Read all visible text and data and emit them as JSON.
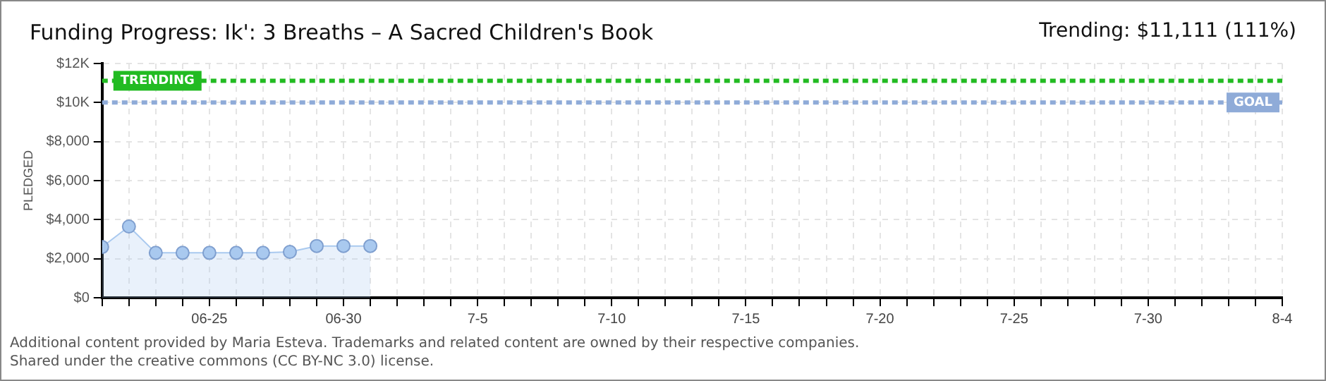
{
  "chart_data": {
    "type": "area",
    "title": "Funding Progress: Ik': 3 Breaths – A Sacred Children's Book",
    "subtitle": "Trending:  $11,111 (111%)",
    "ylabel": "PLEDGED",
    "x": [
      "--06-21",
      "--06-22",
      "--06-23",
      "--06-24",
      "--06-25",
      "--06-26",
      "--06-27",
      "--06-28",
      "--06-29",
      "--06-30",
      "--07-01"
    ],
    "series": [
      {
        "color": "#a9c9ef",
        "values": [
          2600,
          3650,
          2300,
          2300,
          2300,
          2300,
          2300,
          2350,
          2650,
          2650,
          2650
        ]
      }
    ],
    "ylim": [
      0,
      12000
    ],
    "yticks": [
      {
        "value": 0,
        "label": "$0"
      },
      {
        "value": 2000,
        "label": "$2,000"
      },
      {
        "value": 4000,
        "label": "$4,000"
      },
      {
        "value": 6000,
        "label": "$6,000"
      },
      {
        "value": 8000,
        "label": "$8,000"
      },
      {
        "value": 10000,
        "label": "$10K"
      },
      {
        "value": 12000,
        "label": "$12K"
      }
    ],
    "xlim": [
      "--06-21",
      "--08-04"
    ],
    "xticks": [
      {
        "value": "--06-21",
        "label": null
      },
      {
        "value": "--06-22",
        "label": null
      },
      {
        "value": "--06-23",
        "label": null
      },
      {
        "value": "--06-24",
        "label": null
      },
      {
        "value": "--06-25",
        "label": "06-25"
      },
      {
        "value": "--06-26",
        "label": null
      },
      {
        "value": "--06-27",
        "label": null
      },
      {
        "value": "--06-28",
        "label": null
      },
      {
        "value": "--06-29",
        "label": null
      },
      {
        "value": "--06-30",
        "label": "06-30"
      },
      {
        "value": "--07-01",
        "label": null
      },
      {
        "value": "--07-02",
        "label": null
      },
      {
        "value": "--07-03",
        "label": null
      },
      {
        "value": "--07-04",
        "label": null
      },
      {
        "value": "--07-05",
        "label": "7-5"
      },
      {
        "value": "--07-06",
        "label": null
      },
      {
        "value": "--07-07",
        "label": null
      },
      {
        "value": "--07-08",
        "label": null
      },
      {
        "value": "--07-09",
        "label": null
      },
      {
        "value": "--07-10",
        "label": "7-10"
      },
      {
        "value": "--07-11",
        "label": null
      },
      {
        "value": "--07-12",
        "label": null
      },
      {
        "value": "--07-13",
        "label": null
      },
      {
        "value": "--07-14",
        "label": null
      },
      {
        "value": "--07-15",
        "label": "7-15"
      },
      {
        "value": "--07-16",
        "label": null
      },
      {
        "value": "--07-17",
        "label": null
      },
      {
        "value": "--07-18",
        "label": null
      },
      {
        "value": "--07-19",
        "label": null
      },
      {
        "value": "--07-20",
        "label": "7-20"
      },
      {
        "value": "--07-21",
        "label": null
      },
      {
        "value": "--07-22",
        "label": null
      },
      {
        "value": "--07-23",
        "label": null
      },
      {
        "value": "--07-24",
        "label": null
      },
      {
        "value": "--07-25",
        "label": "7-25"
      },
      {
        "value": "--07-26",
        "label": null
      },
      {
        "value": "--07-27",
        "label": null
      },
      {
        "value": "--07-28",
        "label": null
      },
      {
        "value": "--07-29",
        "label": null
      },
      {
        "value": "--07-30",
        "label": "7-30"
      },
      {
        "value": "--07-31",
        "label": null
      },
      {
        "value": "--08-01",
        "label": null
      },
      {
        "value": "--08-02",
        "label": null
      },
      {
        "value": "--08-03",
        "label": null
      },
      {
        "value": "--08-04",
        "label": "8-4"
      }
    ],
    "ref_lines": [
      {
        "axis": "y",
        "value": 11111,
        "label": "TRENDING",
        "color": "#22bb22",
        "line_style": "dashed"
      },
      {
        "axis": "y",
        "value": 10000,
        "label": "GOAL",
        "color": "#8fabd8",
        "line_style": "dashed"
      }
    ],
    "annotations": [
      "Additional content provided by Maria Esteva. Trademarks and related content are owned by their respective companies.",
      "Shared under the creative commons (CC BY-NC 3.0) license."
    ],
    "grid": true,
    "legend": false,
    "marker": "circle",
    "line_style": "solid"
  }
}
